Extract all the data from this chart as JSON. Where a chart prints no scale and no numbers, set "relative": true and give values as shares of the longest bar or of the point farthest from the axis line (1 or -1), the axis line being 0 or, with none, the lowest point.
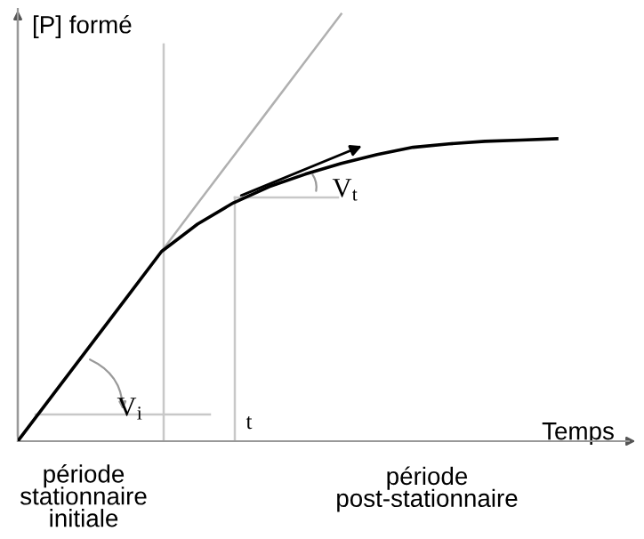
{
  "chart_data": {
    "type": "line",
    "relative": true,
    "xlabel": "Temps",
    "ylabel": "[P] formé",
    "categories": [
      null,
      null,
      null,
      null,
      null,
      null,
      null,
      null,
      null,
      null,
      null,
      null,
      null,
      null,
      null,
      null,
      null
    ],
    "series": [
      {
        "color": "#000000",
        "values": [
          0,
          0.111,
          0.222,
          0.333,
          0.444,
          0.508,
          0.558,
          0.596,
          0.625,
          0.65,
          0.671,
          0.688,
          0.696,
          0.702,
          0.705,
          0.708,
          null
        ]
      },
      {
        "color": "#b0b0b0",
        "values": [
          null,
          null,
          null,
          null,
          0.444,
          0.556,
          0.667,
          0.778,
          0.889,
          1,
          null,
          null,
          null,
          null,
          null,
          null,
          null
        ]
      }
    ],
    "annotations": [
      "V$_{i}$",
      "V$_{t}$",
      "période\nstationnaire\ninitiale",
      "période\npost-stationnaire",
      "t"
    ],
    "legend": false,
    "marker": "none",
    "line_style": "solid"
  }
}
